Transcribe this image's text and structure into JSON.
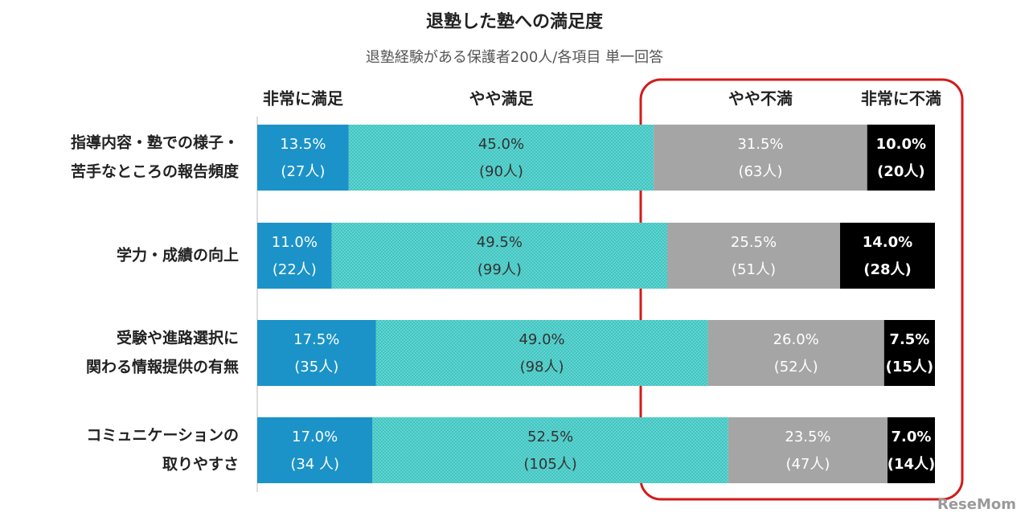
{
  "chart_data": {
    "type": "stacked-bar-horizontal",
    "title": "退塾した塾への満足度",
    "subtitle": "退塾経験がある保護者200人/各項目 単一回答",
    "categories": [
      [
        "指導内容・塾での様子・",
        "苦手なところの報告頻度"
      ],
      [
        "学力・成績の向上"
      ],
      [
        "受験や進路選択に",
        "関わる情報提供の有無"
      ],
      [
        "コミュニケーションの",
        "取りやすさ"
      ]
    ],
    "xlim": [
      0,
      100
    ],
    "series": [
      {
        "name": "非常に満足",
        "color": "#1b93c8",
        "values": [
          13.5,
          11.0,
          17.5,
          17.0
        ],
        "value_labels": [
          "13.5%",
          "11.0%",
          "17.5%",
          "17.0%"
        ],
        "count_labels": [
          "(27人)",
          "(22人)",
          "(35人)",
          "(34 人)"
        ]
      },
      {
        "name": "やや満足",
        "color": "#3ec6c2",
        "values": [
          45.0,
          49.5,
          49.0,
          52.5
        ],
        "value_labels": [
          "45.0%",
          "49.5%",
          "49.0%",
          "52.5%"
        ],
        "count_labels": [
          "(90人)",
          "(99人)",
          "(98人)",
          "(105人)"
        ]
      },
      {
        "name": "やや不満",
        "color": "#a5a5a5",
        "values": [
          31.5,
          25.5,
          26.0,
          23.5
        ],
        "value_labels": [
          "31.5%",
          "25.5%",
          "26.0%",
          "23.5%"
        ],
        "count_labels": [
          "(63人)",
          "(51人)",
          "(52人)",
          "(47人)"
        ]
      },
      {
        "name": "非常に不満",
        "color": "#000000",
        "values": [
          10.0,
          14.0,
          7.5,
          7.0
        ],
        "value_labels": [
          "10.0%",
          "14.0%",
          "7.5%",
          "7.0%"
        ],
        "count_labels": [
          "(20人)",
          "(28人)",
          "(15人)",
          "(14人)"
        ]
      }
    ],
    "watermark": "ReseMom"
  }
}
